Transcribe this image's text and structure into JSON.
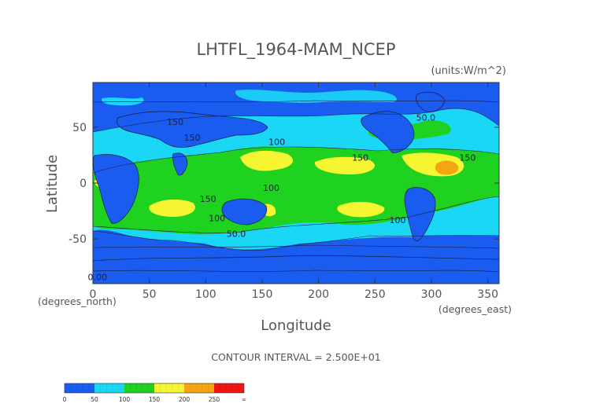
{
  "chart_data": {
    "type": "heatmap",
    "title": "LHTFL_1964-MAM_NCEP",
    "units_label": "(units:W/m^2)",
    "xlabel": "Longitude",
    "ylabel": "Latitude",
    "x_unit_label": "(degrees_east)",
    "y_unit_label": "(degrees_north)",
    "xlim": [
      0,
      360
    ],
    "ylim": [
      -90,
      90
    ],
    "x_ticks": [
      0,
      50,
      100,
      150,
      200,
      250,
      300,
      350
    ],
    "y_ticks": [
      -50,
      0,
      50
    ],
    "contour_interval_text": "CONTOUR INTERVAL = 2.500E+01",
    "colorbar": {
      "levels": [
        "0",
        "50",
        "100",
        "150",
        "200",
        "250",
        "∞"
      ],
      "colors": [
        "#1a5cf0",
        "#19d7f5",
        "#1fd21f",
        "#f5f532",
        "#f5a514",
        "#f01414"
      ]
    },
    "contour_labels": [
      {
        "text": "0.00",
        "lon": 4,
        "lat": -87
      },
      {
        "text": "50.0",
        "lon": 127,
        "lat": -48
      },
      {
        "text": "100",
        "lon": 163,
        "lat": 34
      },
      {
        "text": "150",
        "lon": 237,
        "lat": 20
      },
      {
        "text": "150",
        "lon": 102,
        "lat": -17
      },
      {
        "text": "100",
        "lon": 158,
        "lat": -7
      },
      {
        "text": "100",
        "lon": 110,
        "lat": -34
      },
      {
        "text": "100",
        "lon": 270,
        "lat": -36
      },
      {
        "text": "150",
        "lon": 332,
        "lat": 20
      },
      {
        "text": "50.0",
        "lon": 295,
        "lat": 56
      },
      {
        "text": "150",
        "lon": 73,
        "lat": 52
      },
      {
        "text": "150",
        "lon": 88,
        "lat": 38
      }
    ]
  }
}
